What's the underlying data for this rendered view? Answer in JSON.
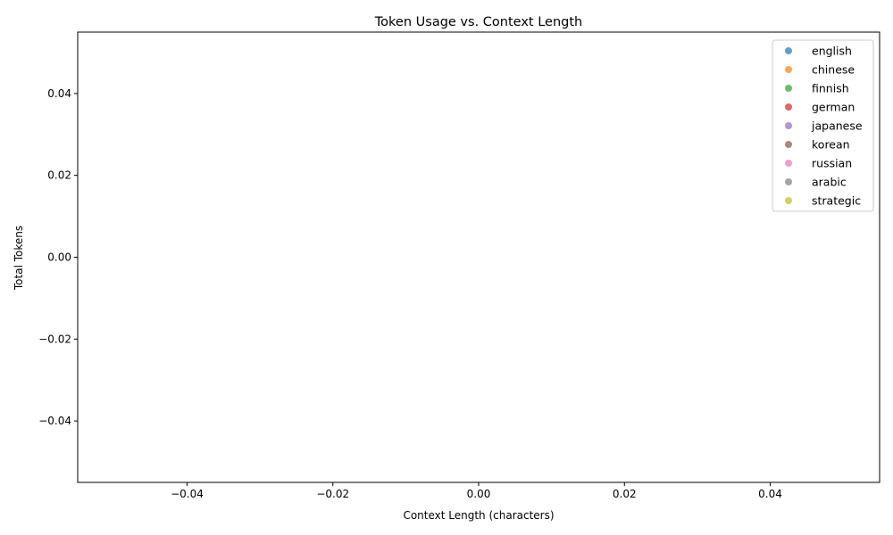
{
  "chart_data": {
    "type": "scatter",
    "title": "Token Usage vs. Context Length",
    "xlabel": "Context Length (characters)",
    "ylabel": "Total Tokens",
    "xlim": [
      -0.055,
      0.055
    ],
    "ylim": [
      -0.055,
      0.055
    ],
    "xticks": [
      -0.04,
      -0.02,
      0.0,
      0.02,
      0.04
    ],
    "yticks": [
      -0.04,
      -0.02,
      0.0,
      0.02,
      0.04
    ],
    "xtick_labels": [
      "−0.04",
      "−0.02",
      "0.00",
      "0.02",
      "0.04"
    ],
    "ytick_labels": [
      "−0.04",
      "−0.02",
      "0.00",
      "0.02",
      "0.04"
    ],
    "grid": false,
    "legend_position": "top-right",
    "series": [
      {
        "name": "english",
        "color": "#1f77b4",
        "points": []
      },
      {
        "name": "chinese",
        "color": "#ff7f0e",
        "points": []
      },
      {
        "name": "finnish",
        "color": "#2ca02c",
        "points": []
      },
      {
        "name": "german",
        "color": "#d62728",
        "points": []
      },
      {
        "name": "japanese",
        "color": "#9467bd",
        "points": []
      },
      {
        "name": "korean",
        "color": "#8c564b",
        "points": []
      },
      {
        "name": "russian",
        "color": "#e377c2",
        "points": []
      },
      {
        "name": "arabic",
        "color": "#7f7f7f",
        "points": []
      },
      {
        "name": "strategic",
        "color": "#bcbd22",
        "points": []
      }
    ]
  }
}
